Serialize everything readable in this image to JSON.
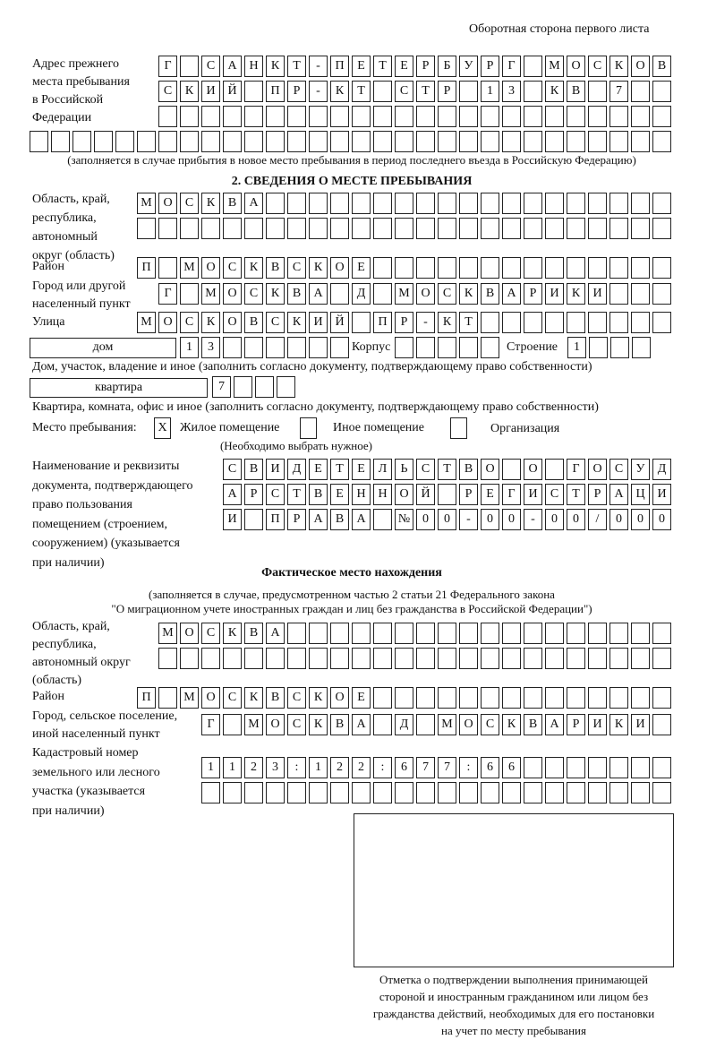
{
  "header": "Оборотная сторона первого листа",
  "previous_address": {
    "label": "Адрес прежнего\nместа пребывания\nв Российской\nФедерации",
    "rows": [
      [
        "Г",
        "",
        "С",
        "А",
        "Н",
        "К",
        "Т",
        "-",
        "П",
        "Е",
        "Т",
        "Е",
        "Р",
        "Б",
        "У",
        "Р",
        "Г",
        "",
        "М",
        "О",
        "С",
        "К",
        "О",
        "В"
      ],
      [
        "С",
        "К",
        "И",
        "Й",
        "",
        "П",
        "Р",
        "-",
        "К",
        "Т",
        "",
        "С",
        "Т",
        "Р",
        "",
        "1",
        "3",
        "",
        "К",
        "В",
        "",
        "7",
        "",
        ""
      ],
      [
        "",
        "",
        "",
        "",
        "",
        "",
        "",
        "",
        "",
        "",
        "",
        "",
        "",
        "",
        "",
        "",
        "",
        "",
        "",
        "",
        "",
        "",
        "",
        ""
      ],
      [
        "",
        "",
        "",
        "",
        "",
        "",
        "",
        "",
        "",
        "",
        "",
        "",
        "",
        "",
        "",
        "",
        "",
        "",
        "",
        "",
        "",
        "",
        "",
        "",
        "",
        "",
        "",
        "",
        "",
        ""
      ]
    ],
    "note": "(заполняется в случае прибытия в новое место пребывания в период последнего въезда в Российскую Федерацию)"
  },
  "section2": {
    "title": "2. СВЕДЕНИЯ О МЕСТЕ ПРЕБЫВАНИЯ",
    "region_label": "Область, край,\nреспублика,\nавтономный\nокруг (область)",
    "region_rows": [
      [
        "М",
        "О",
        "С",
        "К",
        "В",
        "А",
        "",
        "",
        "",
        "",
        "",
        "",
        "",
        "",
        "",
        "",
        "",
        "",
        "",
        "",
        "",
        "",
        "",
        "",
        ""
      ],
      [
        "",
        "",
        "",
        "",
        "",
        "",
        "",
        "",
        "",
        "",
        "",
        "",
        "",
        "",
        "",
        "",
        "",
        "",
        "",
        "",
        "",
        "",
        "",
        "",
        ""
      ]
    ],
    "district_label": "Район",
    "district_row": [
      "П",
      "",
      "М",
      "О",
      "С",
      "К",
      "В",
      "С",
      "К",
      "О",
      "Е",
      "",
      "",
      "",
      "",
      "",
      "",
      "",
      "",
      "",
      "",
      "",
      "",
      "",
      ""
    ],
    "city_label": "Город или другой\nнаселенный пункт",
    "city_row": [
      "Г",
      "",
      "М",
      "О",
      "С",
      "К",
      "В",
      "А",
      "",
      "Д",
      "",
      "М",
      "О",
      "С",
      "К",
      "В",
      "А",
      "Р",
      "И",
      "К",
      "И",
      "",
      "",
      ""
    ],
    "street_label": "Улица",
    "street_row": [
      "М",
      "О",
      "С",
      "К",
      "О",
      "В",
      "С",
      "К",
      "И",
      "Й",
      "",
      "П",
      "Р",
      "-",
      "К",
      "Т",
      "",
      "",
      "",
      "",
      "",
      "",
      "",
      "",
      ""
    ],
    "house_type": "дом",
    "house_cells": [
      "1",
      "3",
      "",
      "",
      "",
      "",
      "",
      ""
    ],
    "korpus_label": "Корпус",
    "korpus_cells": [
      "",
      "",
      "",
      "",
      ""
    ],
    "building_label": "Строение",
    "building_cells": [
      "1",
      "",
      "",
      ""
    ],
    "house_note": "Дом, участок, владение и иное (заполнить согласно документу, подтверждающему право собственности)",
    "apartment_type": "квартира",
    "apartment_cells": [
      "7",
      "",
      "",
      ""
    ],
    "apartment_note": "Квартира, комната, офис и иное (заполнить согласно документу, подтверждающему право собственности)",
    "stay_place_label": "Место пребывания:",
    "options": [
      {
        "mark": "X",
        "label": "Жилое помещение"
      },
      {
        "mark": "",
        "label": "Иное помещение"
      },
      {
        "mark": "",
        "label": "Организация"
      }
    ],
    "choose_note": "(Необходимо выбрать нужное)",
    "document_label": "Наименование и реквизиты\nдокумента, подтверждающего\nправо пользования\nпомещением (строением,\nсооружением) (указывается\nпри наличии)",
    "document_rows": [
      [
        "С",
        "В",
        "И",
        "Д",
        "Е",
        "Т",
        "Е",
        "Л",
        "Ь",
        "С",
        "Т",
        "В",
        "О",
        "",
        "О",
        "",
        "Г",
        "О",
        "С",
        "У",
        "Д"
      ],
      [
        "А",
        "Р",
        "С",
        "Т",
        "В",
        "Е",
        "Н",
        "Н",
        "О",
        "Й",
        "",
        "Р",
        "Е",
        "Г",
        "И",
        "С",
        "Т",
        "Р",
        "А",
        "Ц",
        "И"
      ],
      [
        "И",
        "",
        "П",
        "Р",
        "А",
        "В",
        "А",
        "",
        "№",
        "0",
        "0",
        "-",
        "0",
        "0",
        "-",
        "0",
        "0",
        "/",
        "0",
        "0",
        "0"
      ]
    ]
  },
  "actual_location": {
    "title": "Фактическое место нахождения",
    "note_line1": "(заполняется в случае, предусмотренном частью 2 статьи 21 Федерального закона",
    "note_line2": "\"О миграционном учете иностранных граждан и лиц без гражданства в Российской Федерации\")",
    "region_label": "Область, край,\nреспублика,\nавтономный округ\n(область)",
    "region_rows": [
      [
        "М",
        "О",
        "С",
        "К",
        "В",
        "А",
        "",
        "",
        "",
        "",
        "",
        "",
        "",
        "",
        "",
        "",
        "",
        "",
        "",
        "",
        "",
        "",
        "",
        ""
      ],
      [
        "",
        "",
        "",
        "",
        "",
        "",
        "",
        "",
        "",
        "",
        "",
        "",
        "",
        "",
        "",
        "",
        "",
        "",
        "",
        "",
        "",
        "",
        "",
        ""
      ]
    ],
    "district_label": "Район",
    "district_row": [
      "П",
      "",
      "М",
      "О",
      "С",
      "К",
      "В",
      "С",
      "К",
      "О",
      "Е",
      "",
      "",
      "",
      "",
      "",
      "",
      "",
      "",
      "",
      "",
      "",
      "",
      "",
      ""
    ],
    "city_label": "Город, сельское поселение,\nиной населенный пункт",
    "city_row": [
      "Г",
      "",
      "М",
      "О",
      "С",
      "К",
      "В",
      "А",
      "",
      "Д",
      "",
      "М",
      "О",
      "С",
      "К",
      "В",
      "А",
      "Р",
      "И",
      "К",
      "И",
      ""
    ],
    "cadastral_label": "Кадастровый номер\nземельного или лесного\nучастка (указывается\nпри наличии)",
    "cadastral_rows": [
      [
        "1",
        "1",
        "2",
        "3",
        ":",
        "1",
        "2",
        "2",
        ":",
        "6",
        "7",
        "7",
        ":",
        "6",
        "6",
        "",
        "",
        "",
        "",
        "",
        "",
        ""
      ],
      [
        "",
        "",
        "",
        "",
        "",
        "",
        "",
        "",
        "",
        "",
        "",
        "",
        "",
        "",
        "",
        "",
        "",
        "",
        "",
        "",
        "",
        ""
      ]
    ]
  },
  "confirmation_caption": "Отметка о подтверждении выполнения принимающей\nстороной и иностранным гражданином или лицом без\nгражданства действий, необходимых для его постановки\nна учет по месту пребывания"
}
